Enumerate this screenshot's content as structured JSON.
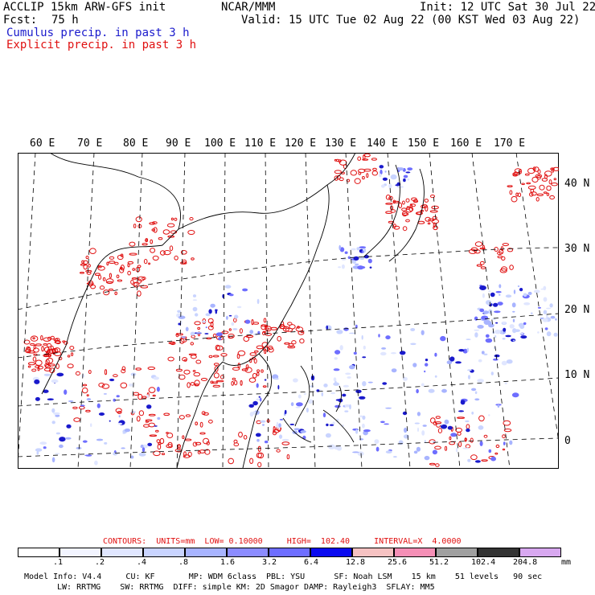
{
  "header": {
    "title_left": "ACCLIP 15km ARW-GFS init",
    "center": "NCAR/MMM",
    "init": "Init: 12 UTC Sat 30 Jul 22",
    "fcst_label": "Fcst:",
    "fcst_value": "75 h",
    "valid": "Valid: 15 UTC Tue 02 Aug 22 (00 KST Wed 03 Aug 22)",
    "cumulus": "Cumulus precip. in past 3 h",
    "explicit": "Explicit precip. in past 3 h"
  },
  "map": {
    "lon_labels": [
      "60 E",
      "70 E",
      "80 E",
      "90 E",
      "100 E",
      "110 E",
      "120 E",
      "130 E",
      "140 E",
      "150 E",
      "160 E",
      "170 E"
    ],
    "lat_labels": [
      "40 N",
      "30 N",
      "20 N",
      "10 N",
      "0"
    ],
    "colors": {
      "cumulus": "#1a1acc",
      "explicit": "#e01010",
      "coast": "#000000",
      "grid": "#000000"
    }
  },
  "footer": {
    "contours": "CONTOURS:  UNITS=mm  LOW= 0.10000     HIGH=  102.40     INTERVAL=X  4.0000",
    "colorbar_labels": [
      ".1",
      ".2",
      ".4",
      ".8",
      "1.6",
      "3.2",
      "6.4",
      "12.8",
      "25.6",
      "51.2",
      "102.4",
      "204.8"
    ],
    "colorbar_unit": "mm",
    "colorbar_colors": [
      "#ffffff",
      "#f2f4ff",
      "#e0e6ff",
      "#c9d4ff",
      "#a8b4ff",
      "#8c8cff",
      "#6e6eff",
      "#0b0bf0",
      "#f6c2c2",
      "#f58fb6",
      "#a0a0a0",
      "#333333",
      "#d8a8f0"
    ],
    "model_line1": "Model Info: V4.4     CU: KF       MP: WDM 6class  PBL: YSU      SF: Noah LSM    15 km    51 levels   90 sec",
    "model_line2": "LW: RRTMG    SW: RRTMG  DIFF: simple KM: 2D Smagor DAMP: Rayleigh3  SFLAY: MM5"
  }
}
